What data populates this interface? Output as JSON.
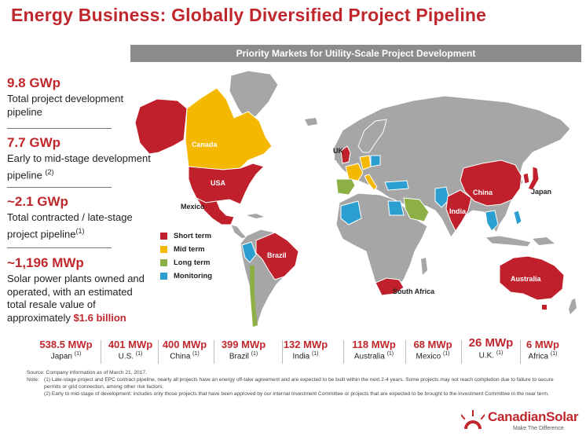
{
  "title": "Energy Business: Globally Diversified Project Pipeline",
  "banner": "Priority Markets for Utility-Scale Project Development",
  "stats": [
    {
      "value": "9.8 GWp",
      "desc": "Total project development pipeline",
      "sup": ""
    },
    {
      "value": "7.7 GWp",
      "desc": "Early to mid-stage development pipeline",
      "sup": "(2)"
    },
    {
      "value": "~2.1 GWp",
      "desc": "Total contracted / late-stage project pipeline",
      "sup": "(1)"
    },
    {
      "value": "~1,196 MWp",
      "desc": "Solar power plants owned and operated, with an estimated total resale value of approximately ",
      "highlight": "$1.6 billion"
    }
  ],
  "legend": [
    {
      "label": "Short term",
      "color": "#c0202b"
    },
    {
      "label": "Mid term",
      "color": "#f5b800"
    },
    {
      "label": "Long term",
      "color": "#8cb045"
    },
    {
      "label": "Monitoring",
      "color": "#2a9fd0"
    }
  ],
  "map_labels": {
    "canada": "Canada",
    "usa": "USA",
    "mexico": "Mexico",
    "brazil": "Brazil",
    "uk": "UK",
    "china": "China",
    "india": "India",
    "japan": "Japan",
    "south_africa": "South Africa",
    "australia": "Australia"
  },
  "captions": [
    {
      "value": "538.5 MWp",
      "country": "Japan",
      "sup": "(1)"
    },
    {
      "value": "401 MWp",
      "country": "U.S.",
      "sup": "(1)"
    },
    {
      "value": "400 MWp",
      "country": "China",
      "sup": "(1)"
    },
    {
      "value": "399 MWp",
      "country": "Brazil",
      "sup": "(1)"
    },
    {
      "value": "132 MWp",
      "country": "India",
      "sup": "(1)"
    },
    {
      "value": "118 MWp",
      "country": "Australia",
      "sup": "(1)"
    },
    {
      "value": "68 MWp",
      "country": "Mexico",
      "sup": "(1)"
    },
    {
      "value": "26 MWp",
      "country": "U.K.",
      "sup": "(1)"
    },
    {
      "value": "6 MWp",
      "country": "Africa",
      "sup": "(1)"
    }
  ],
  "notes": {
    "source": "Source: Company information as of March 21, 2017.",
    "note_key": "Note:",
    "note1": "(1) Late-stage project and EPC contract pipeline, nearly all projects have an energy off-take agreement and are expected to be built within the next 2-4 years. Some projects may not reach completion due to failure to secure permits or grid connection, among other risk factors.",
    "note2": "(2)  Early to mid-stage of development: includes  only  those projects that have been approved by our internal Investment Committee or projects that are expected to be brought to the Investment Committee in the near term."
  },
  "logo": {
    "name": "CanadianSolar",
    "tagline": "Make The Difference"
  }
}
